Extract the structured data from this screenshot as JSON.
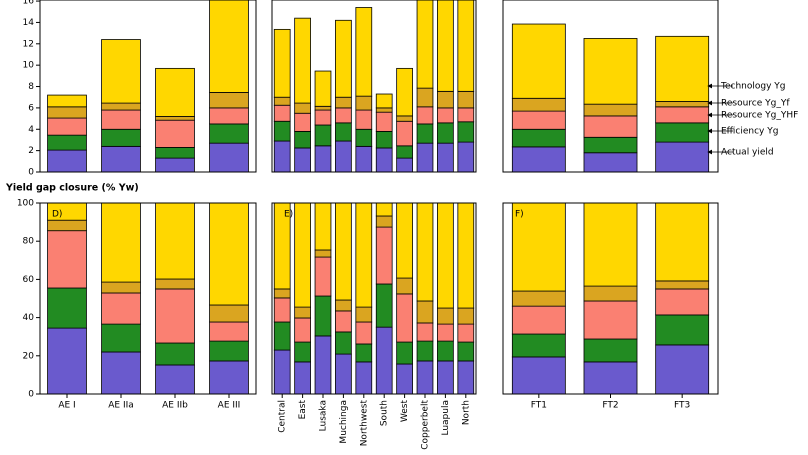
{
  "chart_data": [
    {
      "type": "bar",
      "stacked": true,
      "ylim": [
        0,
        16.1
      ],
      "yticks": [
        0,
        2,
        4,
        6,
        8,
        10,
        12,
        14,
        16
      ],
      "series": [
        {
          "color": "#6a5acd",
          "values": [
            2.05,
            2.4,
            1.3,
            2.7
          ]
        },
        {
          "color": "#228b22",
          "values": [
            1.4,
            1.6,
            1.0,
            1.8
          ]
        },
        {
          "color": "#fa8072",
          "values": [
            1.6,
            1.8,
            2.55,
            1.5
          ]
        },
        {
          "color": "#daa520",
          "values": [
            1.05,
            0.65,
            0.35,
            1.45
          ]
        },
        {
          "color": "#ffd700",
          "values": [
            1.1,
            5.95,
            4.5,
            8.65
          ]
        }
      ]
    },
    {
      "type": "bar",
      "stacked": true,
      "ylim": [
        0,
        16.1
      ],
      "series": [
        {
          "color": "#6a5acd",
          "values": [
            2.9,
            2.25,
            2.45,
            2.9,
            2.4,
            2.25,
            1.3,
            2.7,
            2.7,
            2.8
          ]
        },
        {
          "color": "#228b22",
          "values": [
            1.85,
            1.55,
            1.95,
            1.7,
            1.6,
            1.55,
            1.15,
            1.8,
            1.9,
            1.9
          ]
        },
        {
          "color": "#fa8072",
          "values": [
            1.5,
            1.7,
            1.4,
            1.4,
            1.8,
            1.8,
            2.3,
            1.6,
            1.4,
            1.3
          ]
        },
        {
          "color": "#daa520",
          "values": [
            0.75,
            0.95,
            0.35,
            1.0,
            1.3,
            0.4,
            0.5,
            1.75,
            1.55,
            1.55
          ]
        },
        {
          "color": "#ffd700",
          "values": [
            6.35,
            7.95,
            3.3,
            7.2,
            8.3,
            1.3,
            4.45,
            8.25,
            8.55,
            8.55
          ]
        }
      ]
    },
    {
      "type": "bar",
      "stacked": true,
      "ylim": [
        0,
        16.1
      ],
      "series": [
        {
          "name": "Actual yield",
          "color": "#6a5acd",
          "values": [
            2.35,
            1.8,
            2.8
          ]
        },
        {
          "name": "Efficiency Yg",
          "color": "#228b22",
          "values": [
            1.65,
            1.45,
            1.8
          ]
        },
        {
          "name": "Resource Yg_YHF",
          "color": "#fa8072",
          "values": [
            1.7,
            2.0,
            1.5
          ]
        },
        {
          "name": "Resource Yg_Yf",
          "color": "#daa520",
          "values": [
            1.2,
            1.1,
            0.5
          ]
        },
        {
          "name": "Technology Yg",
          "color": "#ffd700",
          "values": [
            6.95,
            6.15,
            6.1
          ]
        }
      ]
    },
    {
      "type": "bar",
      "stacked": true,
      "y_label": "Yield gap closure (% Yw)",
      "panel_label": "D)",
      "categories": [
        "AE I",
        "AE IIa",
        "AE IIb",
        "AE III"
      ],
      "ylim": [
        0,
        100
      ],
      "yticks": [
        0,
        20,
        40,
        60,
        80,
        100
      ],
      "series": [
        {
          "color": "#6a5acd",
          "values": [
            34.5,
            22,
            15.2,
            17.3
          ]
        },
        {
          "color": "#228b22",
          "values": [
            21,
            14.6,
            11.5,
            10.4
          ]
        },
        {
          "color": "#fa8072",
          "values": [
            30,
            16.3,
            28.3,
            10
          ]
        },
        {
          "color": "#daa520",
          "values": [
            5.5,
            5.7,
            5.2,
            8.9
          ]
        },
        {
          "color": "#ffd700",
          "values": [
            9,
            41.4,
            39.8,
            53.4
          ]
        }
      ]
    },
    {
      "type": "bar",
      "stacked": true,
      "panel_label": "E)",
      "rotate_labels": true,
      "categories": [
        "Central",
        "East",
        "Lusaka",
        "Muchinga",
        "Northwest",
        "South",
        "West",
        "Copperbelt",
        "Luapula",
        "North"
      ],
      "ylim": [
        0,
        100
      ],
      "series": [
        {
          "color": "#6a5acd",
          "values": [
            23,
            16.8,
            30.4,
            20.9,
            16.8,
            35,
            15.7,
            17.3,
            17.3,
            17.3
          ]
        },
        {
          "color": "#228b22",
          "values": [
            14.7,
            10.4,
            20.9,
            11.6,
            9.4,
            22.6,
            11.5,
            10.4,
            10.4,
            9.9
          ]
        },
        {
          "color": "#fa8072",
          "values": [
            12.6,
            12.6,
            20.4,
            11,
            11.5,
            29.8,
            25.2,
            9.5,
            8.9,
            9.4
          ]
        },
        {
          "color": "#daa520",
          "values": [
            4.7,
            5.7,
            3.7,
            5.7,
            7.8,
            5.8,
            8.3,
            11.5,
            8.4,
            8.4
          ]
        },
        {
          "color": "#ffd700",
          "values": [
            45,
            54.5,
            24.6,
            50.8,
            54.5,
            6.8,
            39.3,
            51.3,
            55,
            55
          ]
        }
      ]
    },
    {
      "type": "bar",
      "stacked": true,
      "panel_label": "F)",
      "categories": [
        "FT1",
        "FT2",
        "FT3"
      ],
      "ylim": [
        0,
        100
      ],
      "series": [
        {
          "color": "#6a5acd",
          "values": [
            19.4,
            16.8,
            25.7
          ]
        },
        {
          "color": "#228b22",
          "values": [
            12,
            12,
            15.7
          ]
        },
        {
          "color": "#fa8072",
          "values": [
            14.6,
            19.9,
            13.6
          ]
        },
        {
          "color": "#daa520",
          "values": [
            7.9,
            7.8,
            4.2
          ]
        },
        {
          "color": "#ffd700",
          "values": [
            46.1,
            43.5,
            40.8
          ]
        }
      ]
    }
  ]
}
